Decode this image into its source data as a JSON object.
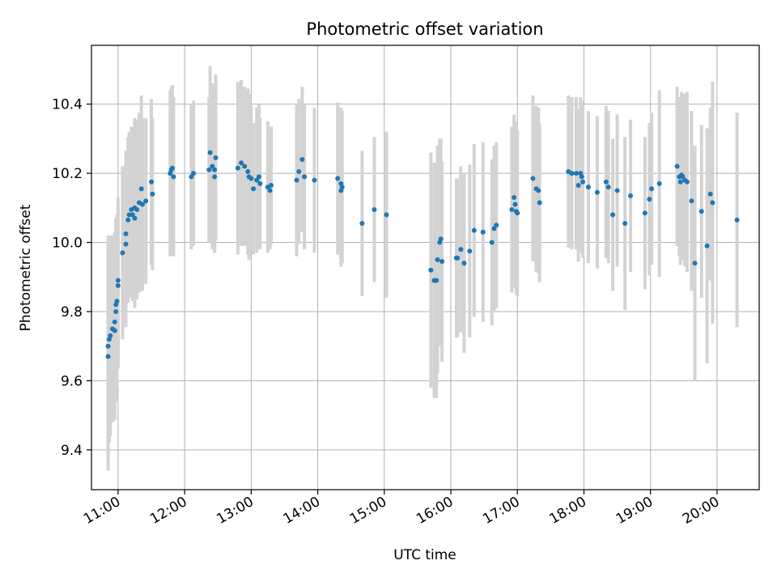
{
  "chart_data": {
    "type": "scatter",
    "title": "Photometric offset variation",
    "xlabel": "UTC time",
    "ylabel": "Photometric offset",
    "xlim": [
      "10:36",
      "20:38"
    ],
    "ylim": [
      9.285,
      10.57
    ],
    "x_ticks": [
      "11:00",
      "12:00",
      "13:00",
      "14:00",
      "15:00",
      "16:00",
      "17:00",
      "18:00",
      "19:00",
      "20:00"
    ],
    "y_ticks": [
      9.4,
      9.6,
      9.8,
      10.0,
      10.2,
      10.4
    ],
    "y_tick_labels": [
      "9.4",
      "9.6",
      "9.8",
      "10.0",
      "10.2",
      "10.4"
    ],
    "grid": true,
    "colors": {
      "point": "#1f77b4",
      "errorbar": "#d3d3d3",
      "grid": "#b0b0b0"
    },
    "points": [
      {
        "t": "10:51",
        "y": 9.67,
        "err": 0.33
      },
      {
        "t": "10:51",
        "y": 9.7,
        "err": 0.32
      },
      {
        "t": "10:52",
        "y": 9.72,
        "err": 0.3
      },
      {
        "t": "10:53",
        "y": 9.73,
        "err": 0.29
      },
      {
        "t": "10:55",
        "y": 9.75,
        "err": 0.27
      },
      {
        "t": "10:57",
        "y": 9.745,
        "err": 0.26
      },
      {
        "t": "10:57",
        "y": 9.77,
        "err": 0.26
      },
      {
        "t": "10:58",
        "y": 9.8,
        "err": 0.26
      },
      {
        "t": "10:58",
        "y": 9.82,
        "err": 0.25
      },
      {
        "t": "10:59",
        "y": 9.83,
        "err": 0.25
      },
      {
        "t": "11:00",
        "y": 9.875,
        "err": 0.24
      },
      {
        "t": "11:00",
        "y": 9.89,
        "err": 0.24
      },
      {
        "t": "11:04",
        "y": 9.97,
        "err": 0.25
      },
      {
        "t": "11:07",
        "y": 9.995,
        "err": 0.24
      },
      {
        "t": "11:07",
        "y": 10.025,
        "err": 0.24
      },
      {
        "t": "11:09",
        "y": 10.065,
        "err": 0.24
      },
      {
        "t": "11:10",
        "y": 10.08,
        "err": 0.24
      },
      {
        "t": "11:12",
        "y": 10.095,
        "err": 0.24
      },
      {
        "t": "11:13",
        "y": 10.08,
        "err": 0.25
      },
      {
        "t": "11:15",
        "y": 10.07,
        "err": 0.26
      },
      {
        "t": "11:15",
        "y": 10.1,
        "err": 0.26
      },
      {
        "t": "11:17",
        "y": 10.095,
        "err": 0.26
      },
      {
        "t": "11:19",
        "y": 10.115,
        "err": 0.26
      },
      {
        "t": "11:21",
        "y": 10.155,
        "err": 0.27
      },
      {
        "t": "11:22",
        "y": 10.11,
        "err": 0.25
      },
      {
        "t": "11:25",
        "y": 10.12,
        "err": 0.24
      },
      {
        "t": "11:30",
        "y": 10.175,
        "err": 0.24
      },
      {
        "t": "11:31",
        "y": 10.14,
        "err": 0.22
      },
      {
        "t": "11:47",
        "y": 10.2,
        "err": 0.24
      },
      {
        "t": "11:48",
        "y": 10.21,
        "err": 0.24
      },
      {
        "t": "11:49",
        "y": 10.215,
        "err": 0.24
      },
      {
        "t": "11:50",
        "y": 10.19,
        "err": 0.23
      },
      {
        "t": "12:06",
        "y": 10.19,
        "err": 0.21
      },
      {
        "t": "12:08",
        "y": 10.2,
        "err": 0.21
      },
      {
        "t": "12:22",
        "y": 10.21,
        "err": 0.21
      },
      {
        "t": "12:23",
        "y": 10.26,
        "err": 0.25
      },
      {
        "t": "12:25",
        "y": 10.22,
        "err": 0.24
      },
      {
        "t": "12:27",
        "y": 10.21,
        "err": 0.24
      },
      {
        "t": "12:27",
        "y": 10.19,
        "err": 0.22
      },
      {
        "t": "12:28",
        "y": 10.245,
        "err": 0.24
      },
      {
        "t": "12:48",
        "y": 10.215,
        "err": 0.25
      },
      {
        "t": "12:51",
        "y": 10.23,
        "err": 0.24
      },
      {
        "t": "12:54",
        "y": 10.22,
        "err": 0.23
      },
      {
        "t": "12:57",
        "y": 10.205,
        "err": 0.24
      },
      {
        "t": "12:58",
        "y": 10.19,
        "err": 0.24
      },
      {
        "t": "13:00",
        "y": 10.185,
        "err": 0.21
      },
      {
        "t": "13:02",
        "y": 10.155,
        "err": 0.19
      },
      {
        "t": "13:05",
        "y": 10.18,
        "err": 0.21
      },
      {
        "t": "13:07",
        "y": 10.19,
        "err": 0.21
      },
      {
        "t": "13:08",
        "y": 10.17,
        "err": 0.19
      },
      {
        "t": "13:15",
        "y": 10.16,
        "err": 0.19
      },
      {
        "t": "13:17",
        "y": 10.15,
        "err": 0.17
      },
      {
        "t": "13:18",
        "y": 10.165,
        "err": 0.17
      },
      {
        "t": "13:41",
        "y": 10.18,
        "err": 0.22
      },
      {
        "t": "13:43",
        "y": 10.205,
        "err": 0.21
      },
      {
        "t": "13:46",
        "y": 10.24,
        "err": 0.21
      },
      {
        "t": "13:48",
        "y": 10.19,
        "err": 0.21
      },
      {
        "t": "13:57",
        "y": 10.18,
        "err": 0.21
      },
      {
        "t": "14:18",
        "y": 10.185,
        "err": 0.22
      },
      {
        "t": "14:21",
        "y": 10.17,
        "err": 0.22
      },
      {
        "t": "14:21",
        "y": 10.15,
        "err": 0.22
      },
      {
        "t": "14:22",
        "y": 10.16,
        "err": 0.22
      },
      {
        "t": "14:40",
        "y": 10.055,
        "err": 0.21
      },
      {
        "t": "14:51",
        "y": 10.095,
        "err": 0.21
      },
      {
        "t": "15:02",
        "y": 10.08,
        "err": 0.24
      },
      {
        "t": "15:42",
        "y": 9.92,
        "err": 0.34
      },
      {
        "t": "15:45",
        "y": 9.89,
        "err": 0.34
      },
      {
        "t": "15:47",
        "y": 9.89,
        "err": 0.34
      },
      {
        "t": "15:48",
        "y": 9.95,
        "err": 0.33
      },
      {
        "t": "15:50",
        "y": 10.0,
        "err": 0.3
      },
      {
        "t": "15:51",
        "y": 10.01,
        "err": 0.29
      },
      {
        "t": "15:52",
        "y": 9.945,
        "err": 0.29
      },
      {
        "t": "16:05",
        "y": 9.955,
        "err": 0.23
      },
      {
        "t": "16:06",
        "y": 9.955,
        "err": 0.23
      },
      {
        "t": "16:09",
        "y": 9.98,
        "err": 0.24
      },
      {
        "t": "16:12",
        "y": 9.94,
        "err": 0.26
      },
      {
        "t": "16:17",
        "y": 9.975,
        "err": 0.25
      },
      {
        "t": "16:21",
        "y": 10.035,
        "err": 0.25
      },
      {
        "t": "16:29",
        "y": 10.03,
        "err": 0.26
      },
      {
        "t": "16:37",
        "y": 10.0,
        "err": 0.24
      },
      {
        "t": "16:39",
        "y": 10.04,
        "err": 0.24
      },
      {
        "t": "16:41",
        "y": 10.05,
        "err": 0.24
      },
      {
        "t": "16:55",
        "y": 10.095,
        "err": 0.24
      },
      {
        "t": "16:57",
        "y": 10.13,
        "err": 0.24
      },
      {
        "t": "16:58",
        "y": 10.11,
        "err": 0.24
      },
      {
        "t": "16:59",
        "y": 10.09,
        "err": 0.24
      },
      {
        "t": "17:00",
        "y": 10.085,
        "err": 0.24
      },
      {
        "t": "17:14",
        "y": 10.185,
        "err": 0.24
      },
      {
        "t": "17:17",
        "y": 10.155,
        "err": 0.24
      },
      {
        "t": "17:19",
        "y": 10.15,
        "err": 0.24
      },
      {
        "t": "17:20",
        "y": 10.115,
        "err": 0.23
      },
      {
        "t": "17:46",
        "y": 10.205,
        "err": 0.22
      },
      {
        "t": "17:49",
        "y": 10.2,
        "err": 0.22
      },
      {
        "t": "17:53",
        "y": 10.2,
        "err": 0.22
      },
      {
        "t": "17:55",
        "y": 10.165,
        "err": 0.22
      },
      {
        "t": "17:57",
        "y": 10.2,
        "err": 0.22
      },
      {
        "t": "17:58",
        "y": 10.19,
        "err": 0.22
      },
      {
        "t": "17:59",
        "y": 10.175,
        "err": 0.22
      },
      {
        "t": "18:04",
        "y": 10.16,
        "err": 0.22
      },
      {
        "t": "18:12",
        "y": 10.145,
        "err": 0.22
      },
      {
        "t": "18:20",
        "y": 10.175,
        "err": 0.22
      },
      {
        "t": "18:22",
        "y": 10.16,
        "err": 0.22
      },
      {
        "t": "18:26",
        "y": 10.08,
        "err": 0.22
      },
      {
        "t": "18:30",
        "y": 10.15,
        "err": 0.22
      },
      {
        "t": "18:37",
        "y": 10.055,
        "err": 0.25
      },
      {
        "t": "18:42",
        "y": 10.135,
        "err": 0.22
      },
      {
        "t": "18:55",
        "y": 10.085,
        "err": 0.22
      },
      {
        "t": "18:59",
        "y": 10.125,
        "err": 0.22
      },
      {
        "t": "19:01",
        "y": 10.155,
        "err": 0.22
      },
      {
        "t": "19:08",
        "y": 10.17,
        "err": 0.27
      },
      {
        "t": "19:24",
        "y": 10.22,
        "err": 0.23
      },
      {
        "t": "19:26",
        "y": 10.19,
        "err": 0.23
      },
      {
        "t": "19:27",
        "y": 10.175,
        "err": 0.24
      },
      {
        "t": "19:28",
        "y": 10.195,
        "err": 0.24
      },
      {
        "t": "19:29",
        "y": 10.19,
        "err": 0.24
      },
      {
        "t": "19:31",
        "y": 10.18,
        "err": 0.25
      },
      {
        "t": "19:33",
        "y": 10.175,
        "err": 0.26
      },
      {
        "t": "19:37",
        "y": 10.12,
        "err": 0.26
      },
      {
        "t": "19:40",
        "y": 9.94,
        "err": 0.34
      },
      {
        "t": "19:46",
        "y": 10.09,
        "err": 0.25
      },
      {
        "t": "19:51",
        "y": 9.99,
        "err": 0.34
      },
      {
        "t": "19:54",
        "y": 10.14,
        "err": 0.25
      },
      {
        "t": "19:56",
        "y": 10.115,
        "err": 0.35
      },
      {
        "t": "20:18",
        "y": 10.065,
        "err": 0.31
      }
    ]
  }
}
